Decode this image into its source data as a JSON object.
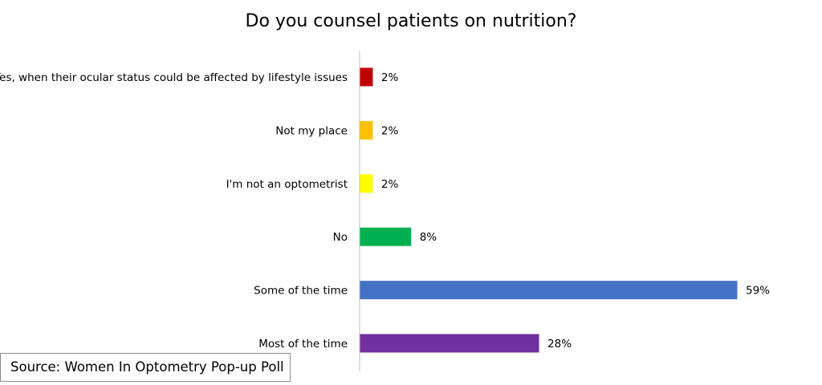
{
  "chart_data": {
    "type": "bar",
    "orientation": "horizontal",
    "title": "Do you counsel patients on nutrition?",
    "categories": [
      "Yes, when their ocular status could be affected by lifestyle issues",
      "Not my place",
      "I'm not an optometrist",
      "No",
      "Some of the time",
      "Most of the time"
    ],
    "values": [
      2,
      2,
      2,
      8,
      59,
      28
    ],
    "value_labels": [
      "2%",
      "2%",
      "2%",
      "8%",
      "59%",
      "28%"
    ],
    "colors": [
      "#C00000",
      "#FFC000",
      "#FFFF00",
      "#00B050",
      "#4472C4",
      "#7030A0"
    ],
    "xlim": [
      0,
      60
    ],
    "grid": false,
    "legend": "none"
  },
  "source_note": "Source: Women In Optometry Pop-up Poll"
}
